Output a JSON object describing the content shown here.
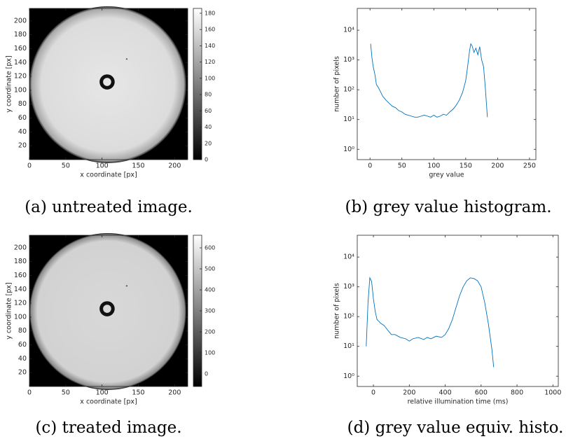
{
  "chart_data": [
    {
      "type": "image",
      "caption": "(a) untreated image.",
      "xlabel": "x coordinate [px]",
      "ylabel": "y coordinate [px]",
      "xlim": [
        0,
        218
      ],
      "ylim": [
        0,
        218
      ],
      "xticks": [
        0,
        50,
        100,
        150,
        200
      ],
      "yticks": [
        20,
        40,
        60,
        80,
        100,
        120,
        140,
        160,
        180,
        200
      ],
      "clim": [
        0,
        186
      ],
      "cticks": [
        0,
        20,
        40,
        60,
        80,
        100,
        120,
        140,
        160,
        180
      ]
    },
    {
      "type": "line",
      "caption": "(b) grey value histogram.",
      "xlabel": "grey value",
      "ylabel": "number of pixels",
      "log_y": true,
      "color": "#0072bd",
      "xlim": [
        -20,
        260
      ],
      "xticks": [
        0,
        50,
        100,
        150,
        200,
        250
      ],
      "ylim": [
        0.45,
        54000
      ],
      "yticks": [
        {
          "value": 1,
          "label": "10⁰"
        },
        {
          "value": 10,
          "label": "10¹"
        },
        {
          "value": 100,
          "label": "10²"
        },
        {
          "value": 1000,
          "label": "10³"
        },
        {
          "value": 10000,
          "label": "10⁴"
        }
      ],
      "x": [
        1,
        3,
        5,
        8,
        10,
        13,
        16,
        20,
        25,
        30,
        35,
        40,
        45,
        50,
        55,
        60,
        65,
        70,
        75,
        80,
        85,
        90,
        95,
        100,
        105,
        110,
        115,
        120,
        125,
        130,
        135,
        140,
        145,
        150,
        153,
        156,
        158,
        160,
        163,
        166,
        169,
        172,
        175,
        178,
        181,
        184
      ],
      "values": [
        3500,
        1200,
        600,
        300,
        150,
        120,
        90,
        60,
        45,
        35,
        28,
        25,
        20,
        18,
        15,
        14,
        13,
        12,
        12,
        13,
        14,
        13,
        12,
        14,
        12,
        13,
        15,
        14,
        18,
        22,
        30,
        45,
        80,
        200,
        600,
        2000,
        3500,
        3000,
        1800,
        2500,
        1500,
        2800,
        1000,
        600,
        100,
        12
      ]
    },
    {
      "type": "image",
      "caption": "(c) treated image.",
      "xlabel": "x coordinate [px]",
      "ylabel": "y coordinate [px]",
      "xlim": [
        0,
        218
      ],
      "ylim": [
        0,
        218
      ],
      "xticks": [
        0,
        50,
        100,
        150,
        200
      ],
      "yticks": [
        20,
        40,
        60,
        80,
        100,
        120,
        140,
        160,
        180,
        200
      ],
      "clim": [
        -60,
        660
      ],
      "cticks": [
        0,
        100,
        200,
        300,
        400,
        500,
        600
      ]
    },
    {
      "type": "line",
      "caption": "(d) grey value equiv. histo.",
      "xlabel": "relative illumination time (ms)",
      "ylabel": "number of pixels",
      "log_y": true,
      "color": "#0072bd",
      "xlim": [
        -90,
        1030
      ],
      "xticks": [
        0,
        200,
        400,
        600,
        800,
        1000
      ],
      "ylim": [
        0.45,
        54000
      ],
      "yticks": [
        {
          "value": 1,
          "label": "10⁰"
        },
        {
          "value": 10,
          "label": "10¹"
        },
        {
          "value": 100,
          "label": "10²"
        },
        {
          "value": 1000,
          "label": "10³"
        },
        {
          "value": 10000,
          "label": "10⁴"
        }
      ],
      "x": [
        -40,
        -30,
        -20,
        -10,
        0,
        10,
        20,
        30,
        40,
        60,
        80,
        100,
        120,
        150,
        180,
        200,
        220,
        250,
        280,
        300,
        320,
        350,
        380,
        400,
        420,
        440,
        460,
        480,
        500,
        520,
        540,
        560,
        580,
        600,
        620,
        640,
        660,
        670
      ],
      "values": [
        10,
        300,
        2000,
        1500,
        400,
        150,
        80,
        70,
        60,
        50,
        35,
        25,
        25,
        20,
        18,
        15,
        18,
        20,
        17,
        20,
        18,
        22,
        20,
        25,
        40,
        80,
        200,
        500,
        1000,
        1600,
        2000,
        1900,
        1600,
        1000,
        300,
        60,
        8,
        2
      ]
    }
  ]
}
